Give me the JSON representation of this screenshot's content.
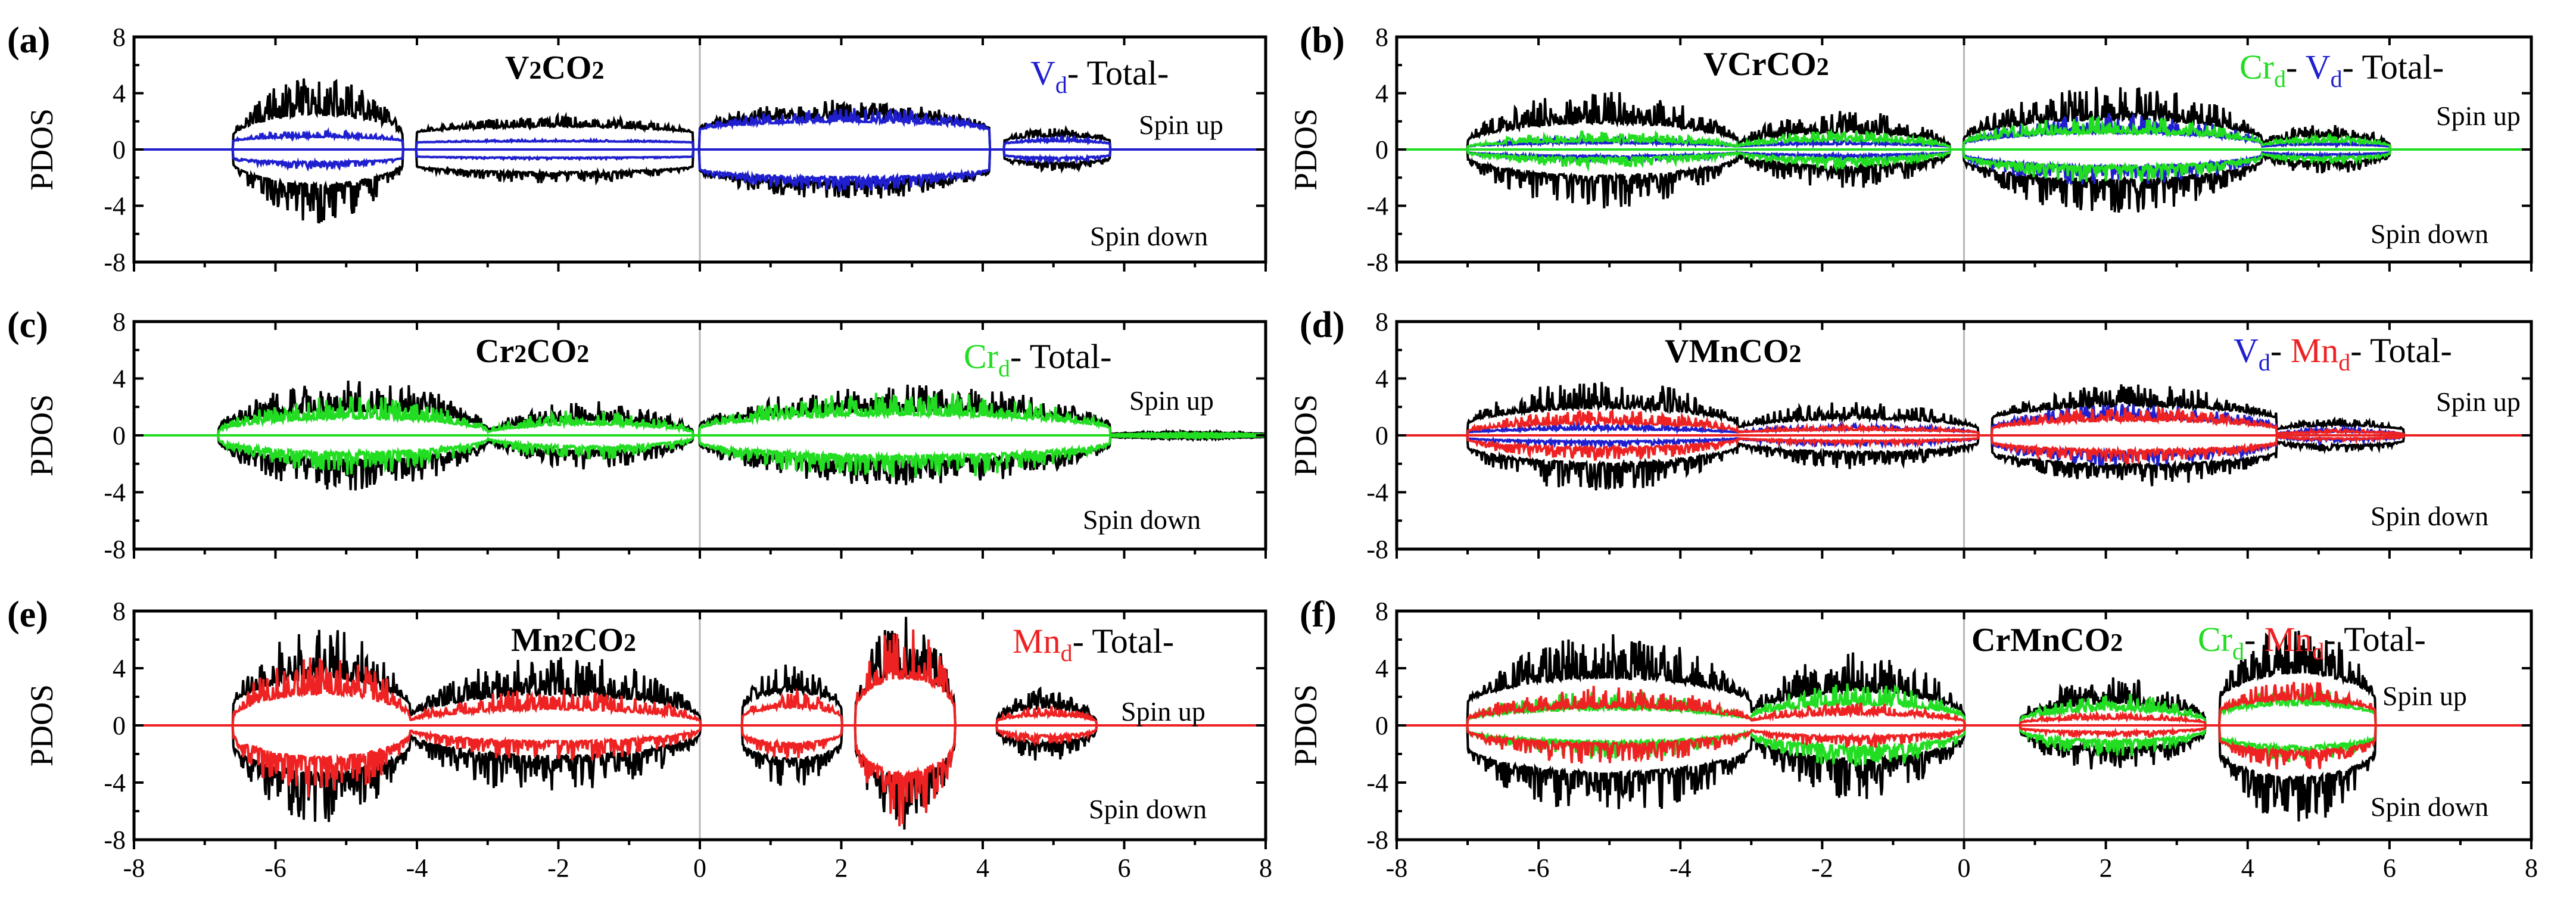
{
  "chart_data": [
    {
      "type": "line",
      "panel_label": "(a)",
      "title": "V2CO2",
      "ylabel": "PDOS",
      "xlim": [
        -8,
        8
      ],
      "ylim": [
        -8,
        8
      ],
      "xticks": [
        "-8",
        "-6",
        "-4",
        "-2",
        "0",
        "2",
        "4",
        "6",
        "8"
      ],
      "yticks": [
        "8",
        "4",
        "0",
        "-4",
        "-8"
      ],
      "legend": [
        {
          "name": "V",
          "sub": "d",
          "color": "#1f1fcf"
        },
        {
          "name": "Total",
          "sub": "",
          "color": "#000000"
        }
      ],
      "annotations": [
        "Spin up",
        "Spin down"
      ],
      "series": [
        {
          "name": "Total",
          "color": "#000000",
          "segments": [
            {
              "x0": -6.6,
              "x1": -4.2,
              "amp": 5.2,
              "tail": 1.0
            },
            {
              "x0": -4.0,
              "x1": -0.1,
              "amp": 2.4,
              "tail": 1.2
            },
            {
              "x0": 0.0,
              "x1": 4.1,
              "amp": 3.6,
              "tail": 1.5
            },
            {
              "x0": 4.3,
              "x1": 5.8,
              "amp": 1.6,
              "tail": 0.6
            }
          ]
        },
        {
          "name": "Vd",
          "color": "#1f1fcf",
          "segments": [
            {
              "x0": -6.6,
              "x1": -4.2,
              "amp": 1.4,
              "tail": 0.6
            },
            {
              "x0": -4.0,
              "x1": -0.1,
              "amp": 0.7,
              "tail": 0.5
            },
            {
              "x0": 0.0,
              "x1": 4.1,
              "amp": 3.0,
              "tail": 1.4
            },
            {
              "x0": 4.3,
              "x1": 5.8,
              "amp": 0.9,
              "tail": 0.4
            }
          ]
        }
      ]
    },
    {
      "type": "line",
      "panel_label": "(b)",
      "title": "VCrCO2",
      "ylabel": "PDOS",
      "xlim": [
        -8,
        8
      ],
      "ylim": [
        -8,
        8
      ],
      "xticks": [
        "-8",
        "-6",
        "-4",
        "-2",
        "0",
        "2",
        "4",
        "6",
        "8"
      ],
      "yticks": [
        "8",
        "4",
        "0",
        "-4",
        "-8"
      ],
      "legend": [
        {
          "name": "Cr",
          "sub": "d",
          "color": "#22dd22"
        },
        {
          "name": "V",
          "sub": "d",
          "color": "#1f1fcf"
        },
        {
          "name": "Total",
          "sub": "",
          "color": "#000000"
        }
      ],
      "annotations": [
        "Spin up",
        "Spin down"
      ],
      "series": [
        {
          "name": "Total",
          "color": "#000000",
          "segments": [
            {
              "x0": -7.0,
              "x1": -3.2,
              "amp": 4.2,
              "tail": 0.6
            },
            {
              "x0": -3.2,
              "x1": -0.2,
              "amp": 2.8,
              "tail": 0.3
            },
            {
              "x0": 0.0,
              "x1": 4.2,
              "amp": 4.6,
              "tail": 0.8
            },
            {
              "x0": 4.2,
              "x1": 6.0,
              "amp": 1.8,
              "tail": 0.4
            }
          ]
        },
        {
          "name": "Vd",
          "color": "#1f1fcf",
          "segments": [
            {
              "x0": -7.0,
              "x1": -3.2,
              "amp": 0.9,
              "tail": 0.2
            },
            {
              "x0": -3.2,
              "x1": -0.2,
              "amp": 0.7,
              "tail": 0.2
            },
            {
              "x0": 0.0,
              "x1": 4.2,
              "amp": 2.6,
              "tail": 0.4
            },
            {
              "x0": 4.2,
              "x1": 6.0,
              "amp": 0.6,
              "tail": 0.2
            }
          ]
        },
        {
          "name": "Crd",
          "color": "#22dd22",
          "segments": [
            {
              "x0": -7.0,
              "x1": -3.2,
              "amp": 1.3,
              "tail": 0.2
            },
            {
              "x0": -3.2,
              "x1": -0.2,
              "amp": 1.4,
              "tail": 0.2
            },
            {
              "x0": 0.0,
              "x1": 4.2,
              "amp": 2.4,
              "tail": 0.5
            },
            {
              "x0": 4.2,
              "x1": 6.0,
              "amp": 1.0,
              "tail": 0.3
            }
          ]
        }
      ]
    },
    {
      "type": "line",
      "panel_label": "(c)",
      "title": "Cr2CO2",
      "ylabel": "PDOS",
      "xlim": [
        -8,
        8
      ],
      "ylim": [
        -8,
        8
      ],
      "xticks": [
        "-8",
        "-6",
        "-4",
        "-2",
        "0",
        "2",
        "4",
        "6",
        "8"
      ],
      "yticks": [
        "8",
        "4",
        "0",
        "-4",
        "-8"
      ],
      "legend": [
        {
          "name": "Cr",
          "sub": "d",
          "color": "#22dd22"
        },
        {
          "name": "Total",
          "sub": "",
          "color": "#000000"
        }
      ],
      "annotations": [
        "Spin up",
        "Spin down"
      ],
      "series": [
        {
          "name": "Total",
          "color": "#000000",
          "segments": [
            {
              "x0": -6.8,
              "x1": -3.0,
              "amp": 4.0,
              "tail": 0.5
            },
            {
              "x0": -3.0,
              "x1": -0.1,
              "amp": 2.4,
              "tail": 0.3
            },
            {
              "x0": 0.0,
              "x1": 5.8,
              "amp": 3.6,
              "tail": 0.7
            },
            {
              "x0": 5.8,
              "x1": 8.0,
              "amp": 0.3,
              "tail": 0.1
            }
          ]
        },
        {
          "name": "Crd",
          "color": "#22dd22",
          "segments": [
            {
              "x0": -6.8,
              "x1": -3.0,
              "amp": 2.8,
              "tail": 0.3
            },
            {
              "x0": -3.0,
              "x1": -0.1,
              "amp": 1.8,
              "tail": 0.2
            },
            {
              "x0": 0.0,
              "x1": 5.8,
              "amp": 3.1,
              "tail": 0.5
            },
            {
              "x0": 5.8,
              "x1": 8.0,
              "amp": 0.2,
              "tail": 0.05
            }
          ]
        }
      ]
    },
    {
      "type": "line",
      "panel_label": "(d)",
      "title": "VMnCO2",
      "ylabel": "PDOS",
      "xlim": [
        -8,
        8
      ],
      "ylim": [
        -8,
        8
      ],
      "xticks": [
        "-8",
        "-6",
        "-4",
        "-2",
        "0",
        "2",
        "4",
        "6",
        "8"
      ],
      "yticks": [
        "8",
        "4",
        "0",
        "-4",
        "-8"
      ],
      "legend": [
        {
          "name": "V",
          "sub": "d",
          "color": "#1f1fcf"
        },
        {
          "name": "Mn",
          "sub": "d",
          "color": "#ee2222"
        },
        {
          "name": "Total",
          "sub": "",
          "color": "#000000"
        }
      ],
      "annotations": [
        "Spin up",
        "Spin down"
      ],
      "series": [
        {
          "name": "Total",
          "color": "#000000",
          "segments": [
            {
              "x0": -7.0,
              "x1": -3.2,
              "amp": 4.0,
              "tail": 0.8
            },
            {
              "x0": -3.2,
              "x1": 0.2,
              "amp": 2.4,
              "tail": 0.5
            },
            {
              "x0": 0.4,
              "x1": 4.4,
              "amp": 3.6,
              "tail": 1.2
            },
            {
              "x0": 4.4,
              "x1": 6.2,
              "amp": 1.2,
              "tail": 0.4
            }
          ]
        },
        {
          "name": "Vd",
          "color": "#1f1fcf",
          "segments": [
            {
              "x0": -7.0,
              "x1": -3.2,
              "amp": 0.8,
              "tail": 0.2
            },
            {
              "x0": -3.2,
              "x1": 0.2,
              "amp": 0.8,
              "tail": 0.2
            },
            {
              "x0": 0.4,
              "x1": 4.4,
              "amp": 2.2,
              "tail": 0.6
            },
            {
              "x0": 4.4,
              "x1": 6.2,
              "amp": 0.5,
              "tail": 0.1
            }
          ]
        },
        {
          "name": "Mnd",
          "color": "#ee2222",
          "segments": [
            {
              "x0": -7.0,
              "x1": -3.2,
              "amp": 1.8,
              "tail": 0.3
            },
            {
              "x0": -3.2,
              "x1": 0.2,
              "amp": 0.7,
              "tail": 0.2
            },
            {
              "x0": 0.4,
              "x1": 4.4,
              "amp": 2.0,
              "tail": 0.5
            },
            {
              "x0": 4.4,
              "x1": 6.2,
              "amp": 0.4,
              "tail": 0.1
            }
          ]
        }
      ]
    },
    {
      "type": "line",
      "panel_label": "(e)",
      "title": "Mn2CO2",
      "ylabel": "PDOS",
      "xlim": [
        -8,
        8
      ],
      "ylim": [
        -8,
        8
      ],
      "xticks": [
        "-8",
        "-6",
        "-4",
        "-2",
        "0",
        "2",
        "4",
        "6",
        "8"
      ],
      "yticks": [
        "8",
        "4",
        "0",
        "-4",
        "-8"
      ],
      "legend": [
        {
          "name": "Mn",
          "sub": "d",
          "color": "#ee2222"
        },
        {
          "name": "Total",
          "sub": "",
          "color": "#000000"
        }
      ],
      "annotations": [
        "Spin up",
        "Spin down"
      ],
      "series": [
        {
          "name": "Total",
          "color": "#000000",
          "segments": [
            {
              "x0": -6.6,
              "x1": -4.1,
              "amp": 6.8,
              "tail": 1.4
            },
            {
              "x0": -4.1,
              "x1": 0.0,
              "amp": 5.0,
              "tail": 0.6
            },
            {
              "x0": 0.6,
              "x1": 2.0,
              "amp": 4.4,
              "tail": 1.2
            },
            {
              "x0": 2.2,
              "x1": 3.6,
              "amp": 7.6,
              "tail": 1.4
            },
            {
              "x0": 4.2,
              "x1": 5.6,
              "amp": 2.6,
              "tail": 0.4
            }
          ]
        },
        {
          "name": "Mnd",
          "color": "#ee2222",
          "segments": [
            {
              "x0": -6.6,
              "x1": -4.1,
              "amp": 5.2,
              "tail": 0.6
            },
            {
              "x0": -4.1,
              "x1": 0.0,
              "amp": 2.6,
              "tail": 0.3
            },
            {
              "x0": 0.6,
              "x1": 2.0,
              "amp": 2.4,
              "tail": 0.6
            },
            {
              "x0": 2.2,
              "x1": 3.6,
              "amp": 7.2,
              "tail": 1.2
            },
            {
              "x0": 4.2,
              "x1": 5.6,
              "amp": 1.4,
              "tail": 0.3
            }
          ]
        }
      ]
    },
    {
      "type": "line",
      "panel_label": "(f)",
      "title": "CrMnCO2",
      "ylabel": "PDOS",
      "xlim": [
        -8,
        8
      ],
      "ylim": [
        -8,
        8
      ],
      "xticks": [
        "-8",
        "-6",
        "-4",
        "-2",
        "0",
        "2",
        "4",
        "6",
        "8"
      ],
      "yticks": [
        "8",
        "4",
        "0",
        "-4",
        "-8"
      ],
      "legend": [
        {
          "name": "Cr",
          "sub": "d",
          "color": "#22dd22"
        },
        {
          "name": "Mn",
          "sub": "d",
          "color": "#ee2222"
        },
        {
          "name": "Total",
          "sub": "",
          "color": "#000000"
        }
      ],
      "annotations": [
        "Spin up",
        "Spin down"
      ],
      "series": [
        {
          "name": "Total",
          "color": "#000000",
          "segments": [
            {
              "x0": -7.0,
              "x1": -3.0,
              "amp": 6.4,
              "tail": 1.6
            },
            {
              "x0": -3.0,
              "x1": 0.0,
              "amp": 5.2,
              "tail": 0.8
            },
            {
              "x0": 0.8,
              "x1": 3.4,
              "amp": 3.4,
              "tail": 0.5
            },
            {
              "x0": 3.6,
              "x1": 5.8,
              "amp": 7.0,
              "tail": 1.8
            }
          ]
        },
        {
          "name": "Crd",
          "color": "#22dd22",
          "segments": [
            {
              "x0": -7.0,
              "x1": -3.0,
              "amp": 2.4,
              "tail": 0.4
            },
            {
              "x0": -3.0,
              "x1": 0.0,
              "amp": 3.0,
              "tail": 0.6
            },
            {
              "x0": 0.8,
              "x1": 3.4,
              "amp": 2.2,
              "tail": 0.4
            },
            {
              "x0": 3.6,
              "x1": 5.8,
              "amp": 2.6,
              "tail": 0.8
            }
          ]
        },
        {
          "name": "Mnd",
          "color": "#ee2222",
          "segments": [
            {
              "x0": -7.0,
              "x1": -3.0,
              "amp": 2.8,
              "tail": 0.4
            },
            {
              "x0": -3.0,
              "x1": 0.0,
              "amp": 1.6,
              "tail": 0.3
            },
            {
              "x0": 0.8,
              "x1": 3.4,
              "amp": 0.9,
              "tail": 0.2
            },
            {
              "x0": 3.6,
              "x1": 5.8,
              "amp": 3.2,
              "tail": 1.0
            }
          ]
        }
      ]
    }
  ]
}
